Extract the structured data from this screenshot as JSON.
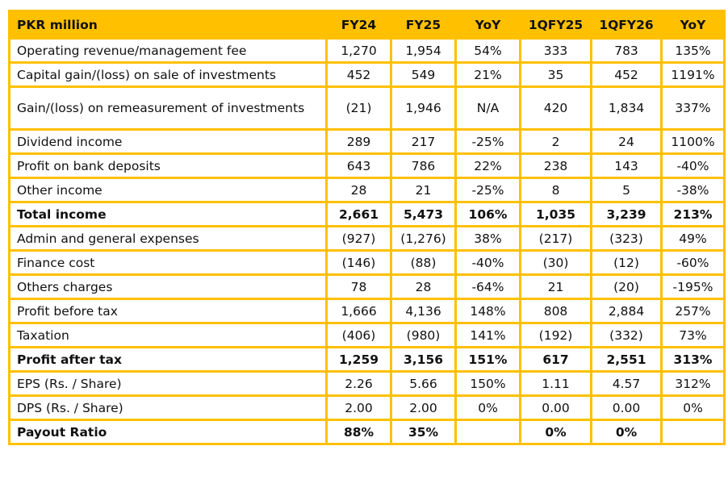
{
  "headers": [
    "PKR million",
    "FY24",
    "FY25",
    "YoY",
    "1QFY25",
    "1QFY26",
    "YoY"
  ],
  "rows": [
    {
      "label": "Operating revenue/management fee",
      "values": [
        "1,270",
        "1,954",
        "54%",
        "333",
        "783",
        "135%"
      ],
      "bold": false
    },
    {
      "label": "Capital gain/(loss) on sale of investments",
      "values": [
        "452",
        "549",
        "21%",
        "35",
        "452",
        "1191%"
      ],
      "bold": false
    },
    {
      "label": "Gain/(loss) on remeasurement of investments",
      "values": [
        "(21)",
        "1,946",
        "N/A",
        "420",
        "1,834",
        "337%"
      ],
      "bold": false,
      "tall": true
    },
    {
      "label": "Dividend income",
      "values": [
        "289",
        "217",
        "-25%",
        "2",
        "24",
        "1100%"
      ],
      "bold": false
    },
    {
      "label": "Profit on bank deposits",
      "values": [
        "643",
        "786",
        "22%",
        "238",
        "143",
        "-40%"
      ],
      "bold": false
    },
    {
      "label": "Other income",
      "values": [
        "28",
        "21",
        "-25%",
        "8",
        "5",
        "-38%"
      ],
      "bold": false
    },
    {
      "label": "Total income",
      "values": [
        "2,661",
        "5,473",
        "106%",
        "1,035",
        "3,239",
        "213%"
      ],
      "bold": true
    },
    {
      "label": "Admin and general expenses",
      "values": [
        "(927)",
        "(1,276)",
        "38%",
        "(217)",
        "(323)",
        "49%"
      ],
      "bold": false
    },
    {
      "label": "Finance cost",
      "values": [
        "(146)",
        "(88)",
        "-40%",
        "(30)",
        "(12)",
        "-60%"
      ],
      "bold": false
    },
    {
      "label": "Others charges",
      "values": [
        "78",
        "28",
        "-64%",
        "21",
        "(20)",
        "-195%"
      ],
      "bold": false
    },
    {
      "label": "Profit before tax",
      "values": [
        "1,666",
        "4,136",
        "148%",
        "808",
        "2,884",
        "257%"
      ],
      "bold": false
    },
    {
      "label": "Taxation",
      "values": [
        "(406)",
        "(980)",
        "141%",
        "(192)",
        "(332)",
        "73%"
      ],
      "bold": false
    },
    {
      "label": "Profit after tax",
      "values": [
        "1,259",
        "3,156",
        "151%",
        "617",
        "2,551",
        "313%"
      ],
      "bold": true
    },
    {
      "label": "EPS (Rs. / Share)",
      "values": [
        "2.26",
        "5.66",
        "150%",
        "1.11",
        "4.57",
        "312%"
      ],
      "bold": false
    },
    {
      "label": "DPS (Rs. / Share)",
      "values": [
        "2.00",
        "2.00",
        "0%",
        "0.00",
        "0.00",
        "0%"
      ],
      "bold": false
    },
    {
      "label": "Payout Ratio",
      "values": [
        "88%",
        "35%",
        "",
        "0%",
        "0%",
        ""
      ],
      "bold": true
    }
  ],
  "colors": {
    "header_bg": "#FFC000",
    "border": "#FFC000"
  }
}
